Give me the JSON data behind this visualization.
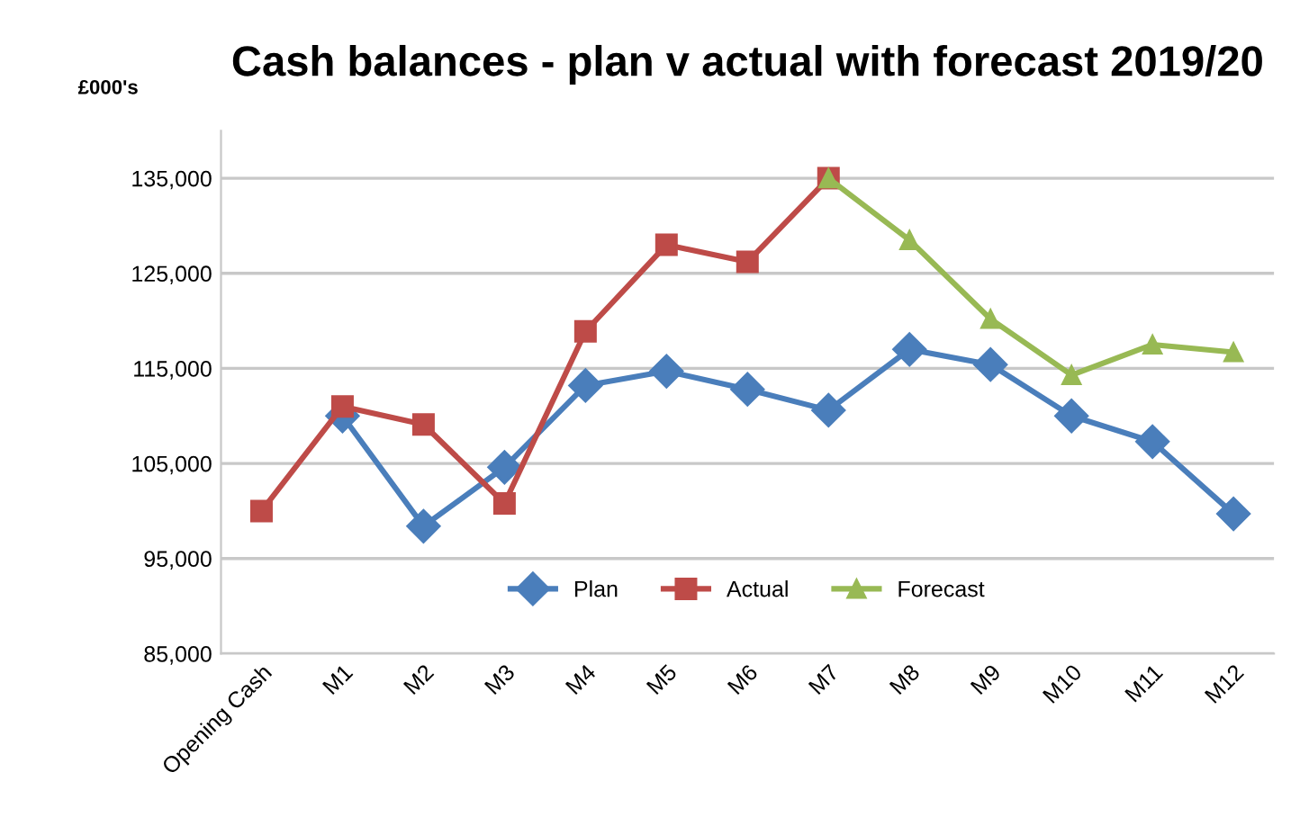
{
  "chart_data": {
    "type": "line",
    "title": "Cash balances - plan v actual with forecast 2019/20",
    "ylabel": "£000's",
    "categories": [
      "Opening Cash",
      "M1",
      "M2",
      "M3",
      "M4",
      "M5",
      "M6",
      "M7",
      "M8",
      "M9",
      "M10",
      "M11",
      "M12"
    ],
    "series": [
      {
        "name": "Plan",
        "color": "#4a7ebb",
        "marker": "diamond",
        "values": [
          null,
          110000,
          98400,
          104600,
          113200,
          114700,
          112800,
          110600,
          117000,
          115400,
          110000,
          107300,
          99700
        ]
      },
      {
        "name": "Actual",
        "color": "#be4b48",
        "marker": "square",
        "values": [
          100000,
          111000,
          109100,
          100800,
          118900,
          128000,
          126200,
          135000,
          null,
          null,
          null,
          null,
          null
        ]
      },
      {
        "name": "Forecast",
        "color": "#98b954",
        "marker": "triangle",
        "values": [
          null,
          null,
          null,
          null,
          null,
          null,
          null,
          135000,
          128500,
          120200,
          114300,
          117500,
          116700
        ]
      }
    ],
    "ylim": [
      85000,
      140000
    ],
    "yticks": [
      {
        "value": 85000,
        "label": "85,000"
      },
      {
        "value": 95000,
        "label": "95,000"
      },
      {
        "value": 105000,
        "label": "105,000"
      },
      {
        "value": 115000,
        "label": "115,000"
      },
      {
        "value": 125000,
        "label": "125,000"
      },
      {
        "value": 135000,
        "label": "135,000"
      }
    ],
    "grid": "y",
    "legend": "bottom"
  }
}
